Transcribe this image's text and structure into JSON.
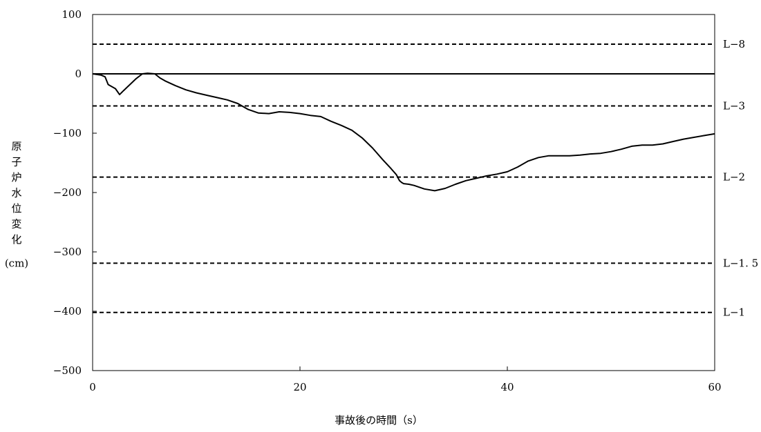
{
  "chart_data": {
    "type": "line",
    "title": "",
    "xlabel": "事故後の時間（s）",
    "ylabel_chars": [
      "原",
      "子",
      "炉",
      "水",
      "位",
      "変",
      "化"
    ],
    "ylabel_unit": "(cm)",
    "xlim": [
      0,
      60
    ],
    "ylim": [
      -500,
      100
    ],
    "x_ticks": [
      0,
      20,
      40,
      60
    ],
    "y_ticks": [
      100,
      0,
      -100,
      -200,
      -300,
      -400,
      -500
    ],
    "x_tick_labels": [
      "0",
      "20",
      "40",
      "60"
    ],
    "y_tick_labels": [
      "100",
      "0",
      "−100",
      "−200",
      "−300",
      "−400",
      "−500"
    ],
    "grid": false,
    "zero_line": 0,
    "reference_lines": [
      {
        "label": "L−8",
        "y": 50
      },
      {
        "label": "L−3",
        "y": -54
      },
      {
        "label": "L−2",
        "y": -174
      },
      {
        "label": "L−1. 5",
        "y": -319
      },
      {
        "label": "L−1",
        "y": -402
      }
    ],
    "series": [
      {
        "x": [
          0,
          0.8,
          1.2,
          1.5,
          1.7,
          2.2,
          2.6,
          3.0,
          3.6,
          4.2,
          4.8,
          5.3,
          6.0,
          6.5,
          7.0,
          8.0,
          9.0,
          10.0,
          11.0,
          12.0,
          13.0,
          14.0,
          15.0,
          16.0,
          17.0,
          18.0,
          19.0,
          20.0,
          21.0,
          22.0,
          23.0,
          24.0,
          25.0,
          26.0,
          27.0,
          28.0,
          28.8,
          29.3,
          29.6,
          29.8,
          30.0,
          30.5,
          31.0,
          32.0,
          33.0,
          34.0,
          35.0,
          36.0,
          37.0,
          38.0,
          39.0,
          40.0,
          41.0,
          42.0,
          43.0,
          44.0,
          45.0,
          46.0,
          47.0,
          48.0,
          49.0,
          50.0,
          51.0,
          52.0,
          53.0,
          54.0,
          55.0,
          56.0,
          57.0,
          58.0,
          59.0,
          60.0
        ],
        "y": [
          0,
          -2,
          -5,
          -18,
          -20,
          -25,
          -35,
          -28,
          -18,
          -8,
          0,
          1,
          0,
          -7,
          -12,
          -20,
          -27,
          -32,
          -36,
          -40,
          -44,
          -50,
          -60,
          -66,
          -67,
          -64,
          -65,
          -67,
          -70,
          -72,
          -80,
          -87,
          -95,
          -108,
          -125,
          -145,
          -160,
          -170,
          -180,
          -183,
          -185,
          -186,
          -188,
          -194,
          -197,
          -193,
          -186,
          -180,
          -176,
          -172,
          -169,
          -165,
          -157,
          -147,
          -141,
          -138,
          -138,
          -138,
          -137,
          -135,
          -134,
          -131,
          -127,
          -122,
          -120,
          -120,
          -118,
          -114,
          -110,
          -107,
          -104,
          -101
        ]
      }
    ]
  }
}
